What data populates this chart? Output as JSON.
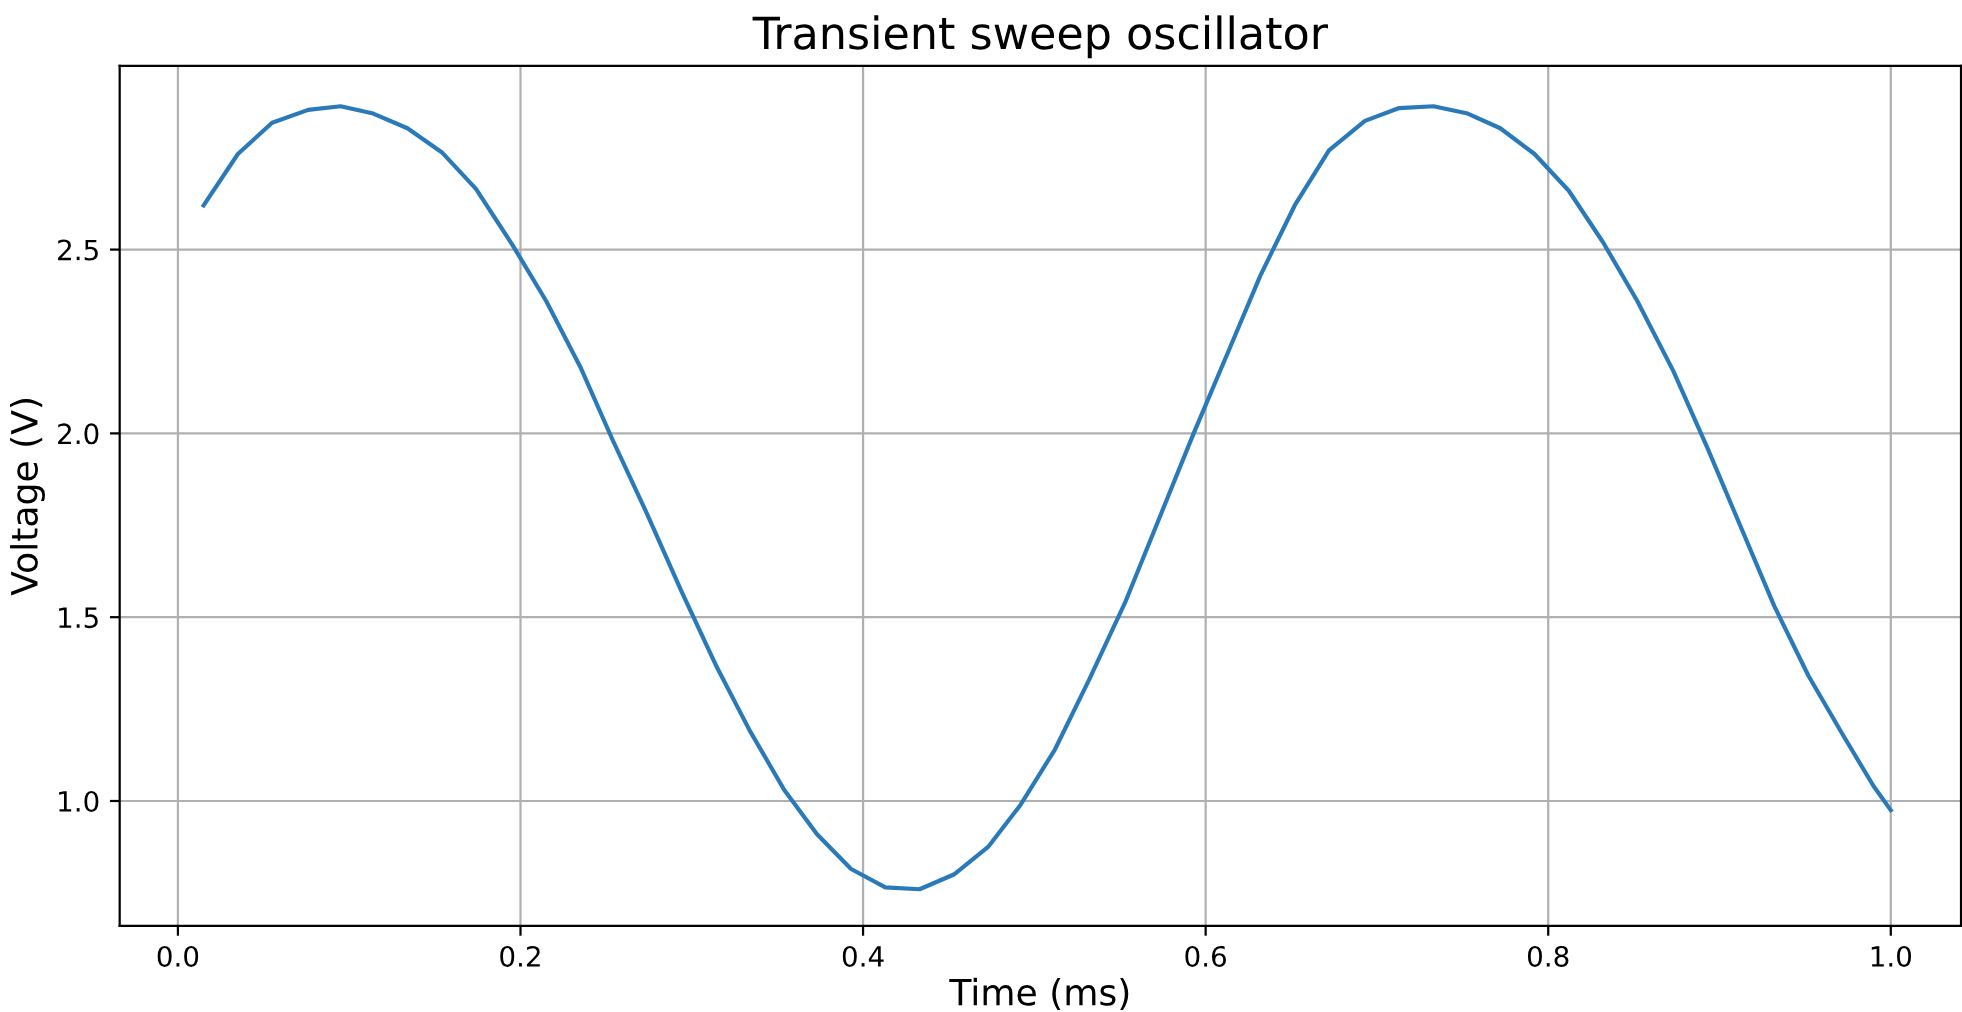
{
  "chart_data": {
    "type": "line",
    "title": "Transient sweep oscillator",
    "xlabel": "Time (ms)",
    "ylabel": "Voltage (V)",
    "x": [
      0.015,
      0.035,
      0.055,
      0.076,
      0.095,
      0.114,
      0.134,
      0.154,
      0.174,
      0.195,
      0.215,
      0.235,
      0.254,
      0.274,
      0.294,
      0.314,
      0.334,
      0.354,
      0.373,
      0.393,
      0.413,
      0.433,
      0.453,
      0.473,
      0.492,
      0.512,
      0.532,
      0.553,
      0.573,
      0.593,
      0.613,
      0.632,
      0.652,
      0.672,
      0.693,
      0.713,
      0.733,
      0.753,
      0.772,
      0.792,
      0.812,
      0.832,
      0.852,
      0.873,
      0.893,
      0.912,
      0.932,
      0.952,
      0.972,
      0.99,
      1.0
    ],
    "series": [
      {
        "color": "#2a7ab9",
        "values": [
          2.62,
          2.76,
          2.845,
          2.88,
          2.89,
          2.87,
          2.83,
          2.765,
          2.665,
          2.515,
          2.36,
          2.18,
          1.98,
          1.78,
          1.57,
          1.37,
          1.19,
          1.03,
          0.91,
          0.815,
          0.765,
          0.76,
          0.8,
          0.875,
          0.99,
          1.14,
          1.33,
          1.54,
          1.77,
          2.0,
          2.22,
          2.43,
          2.62,
          2.77,
          2.85,
          2.885,
          2.89,
          2.87,
          2.83,
          2.76,
          2.66,
          2.52,
          2.36,
          2.17,
          1.96,
          1.75,
          1.53,
          1.34,
          1.18,
          1.04,
          0.975
        ]
      }
    ],
    "xlim": [
      -0.034,
      1.041
    ],
    "ylim": [
      0.66,
      3.0
    ],
    "xticks": [
      {
        "value": 0.0,
        "label": "0.0"
      },
      {
        "value": 0.2,
        "label": "0.2"
      },
      {
        "value": 0.4,
        "label": "0.4"
      },
      {
        "value": 0.6,
        "label": "0.6"
      },
      {
        "value": 0.8,
        "label": "0.8"
      },
      {
        "value": 1.0,
        "label": "1.0"
      }
    ],
    "yticks": [
      {
        "value": 1.0,
        "label": "1.0"
      },
      {
        "value": 1.5,
        "label": "1.5"
      },
      {
        "value": 2.0,
        "label": "2.0"
      },
      {
        "value": 2.5,
        "label": "2.5"
      }
    ],
    "grid": true
  }
}
